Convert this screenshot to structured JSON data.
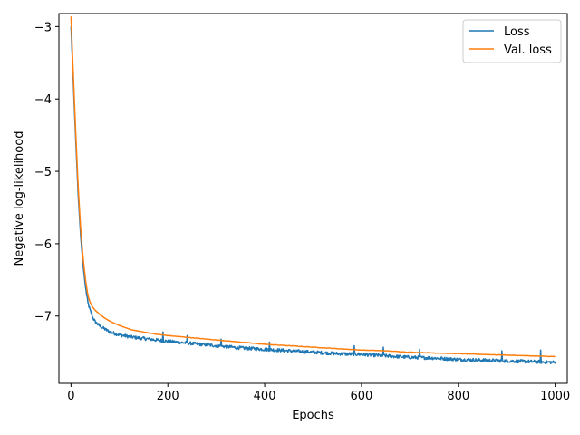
{
  "chart_data": {
    "type": "line",
    "title": "",
    "xlabel": "Epochs",
    "ylabel": "Negative log-likelihood",
    "xlim": [
      -25,
      1025
    ],
    "ylim": [
      -7.93,
      -2.82
    ],
    "xticks": [
      0,
      200,
      400,
      600,
      800,
      1000
    ],
    "xtick_labels": [
      "0",
      "200",
      "400",
      "600",
      "800",
      "1000"
    ],
    "yticks": [
      -3,
      -4,
      -5,
      -6,
      -7
    ],
    "ytick_labels": [
      "−3",
      "−4",
      "−5",
      "−6",
      "−7"
    ],
    "grid": false,
    "legend_position": "top-right",
    "series": [
      {
        "name": "Loss",
        "color": "#1f77b4",
        "noisy": true,
        "x": [
          0,
          5,
          10,
          15,
          20,
          25,
          30,
          35,
          40,
          45,
          50,
          60,
          70,
          80,
          100,
          125,
          150,
          175,
          200,
          250,
          300,
          350,
          400,
          450,
          500,
          550,
          600,
          650,
          700,
          750,
          800,
          850,
          900,
          950,
          1000
        ],
        "y": [
          -3.0,
          -3.8,
          -4.6,
          -5.35,
          -5.9,
          -6.3,
          -6.6,
          -6.82,
          -6.93,
          -7.02,
          -7.08,
          -7.14,
          -7.18,
          -7.22,
          -7.26,
          -7.29,
          -7.31,
          -7.33,
          -7.35,
          -7.38,
          -7.41,
          -7.44,
          -7.46,
          -7.48,
          -7.5,
          -7.52,
          -7.53,
          -7.55,
          -7.57,
          -7.58,
          -7.6,
          -7.61,
          -7.62,
          -7.63,
          -7.64
        ],
        "spikes": [
          [
            190,
            -7.22
          ],
          [
            240,
            -7.27
          ],
          [
            310,
            -7.32
          ],
          [
            410,
            -7.36
          ],
          [
            585,
            -7.41
          ],
          [
            645,
            -7.43
          ],
          [
            720,
            -7.46
          ],
          [
            890,
            -7.48
          ],
          [
            970,
            -7.47
          ]
        ]
      },
      {
        "name": "Val. loss",
        "color": "#ff7f0e",
        "noisy": false,
        "x": [
          0,
          5,
          10,
          15,
          20,
          25,
          30,
          35,
          40,
          45,
          50,
          60,
          70,
          80,
          100,
          125,
          150,
          175,
          200,
          250,
          300,
          350,
          400,
          450,
          500,
          550,
          600,
          650,
          700,
          750,
          800,
          850,
          900,
          950,
          1000
        ],
        "y": [
          -2.86,
          -3.7,
          -4.5,
          -5.25,
          -5.8,
          -6.2,
          -6.5,
          -6.72,
          -6.82,
          -6.88,
          -6.92,
          -6.98,
          -7.03,
          -7.07,
          -7.13,
          -7.19,
          -7.22,
          -7.25,
          -7.27,
          -7.3,
          -7.33,
          -7.36,
          -7.39,
          -7.41,
          -7.43,
          -7.45,
          -7.47,
          -7.48,
          -7.5,
          -7.51,
          -7.52,
          -7.53,
          -7.54,
          -7.55,
          -7.56
        ]
      }
    ]
  }
}
